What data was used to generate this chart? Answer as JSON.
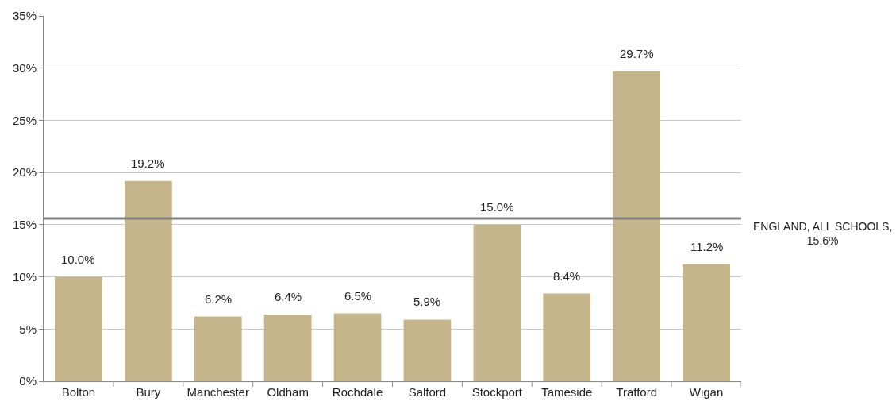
{
  "chart_data": {
    "type": "bar",
    "categories": [
      "Bolton",
      "Bury",
      "Manchester",
      "Oldham",
      "Rochdale",
      "Salford",
      "Stockport",
      "Tameside",
      "Trafford",
      "Wigan"
    ],
    "values": [
      10.0,
      19.2,
      6.2,
      6.4,
      6.5,
      5.9,
      15.0,
      8.4,
      29.7,
      11.2
    ],
    "value_labels": [
      "10.0%",
      "19.2%",
      "6.2%",
      "6.4%",
      "6.5%",
      "5.9%",
      "15.0%",
      "8.4%",
      "29.7%",
      "11.2%"
    ],
    "color": "#c4b68a",
    "ylim": [
      0,
      35
    ],
    "yticks": [
      {
        "value": 0,
        "label": "0%"
      },
      {
        "value": 5,
        "label": "5%"
      },
      {
        "value": 10,
        "label": "10%"
      },
      {
        "value": 15,
        "label": "15%"
      },
      {
        "value": 20,
        "label": "20%"
      },
      {
        "value": 25,
        "label": "25%"
      },
      {
        "value": 30,
        "label": "30%"
      },
      {
        "value": 35,
        "label": "35%"
      }
    ],
    "grid": "y",
    "ref_lines": [
      {
        "axis": "y",
        "value": 15.6,
        "label": "ENGLAND, ALL SCHOOLS, 15.6%",
        "color": "#808080",
        "line_style": "solid"
      }
    ]
  }
}
